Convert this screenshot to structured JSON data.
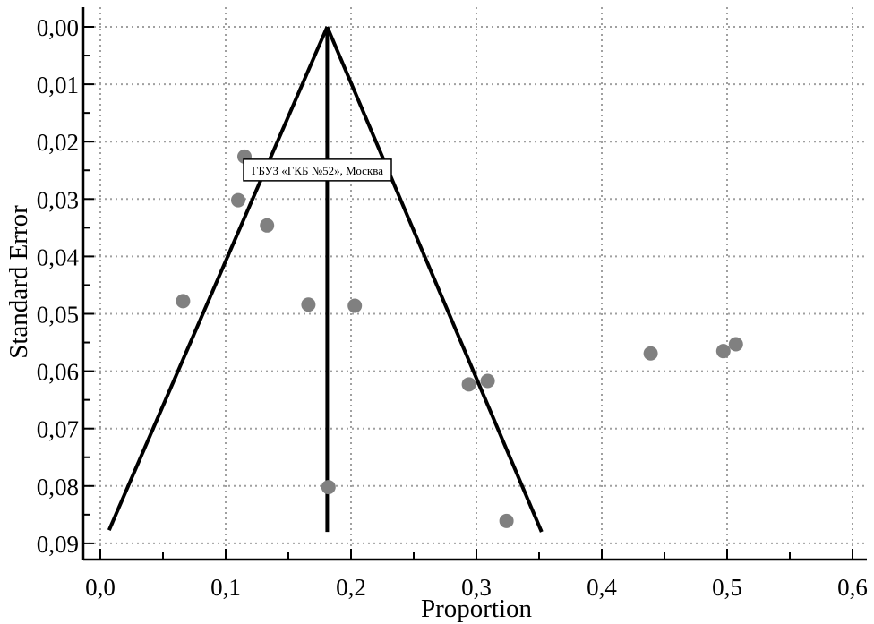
{
  "chart_data": {
    "type": "scatter",
    "subtype": "funnel-plot",
    "title": "",
    "xlabel": "Proportion",
    "ylabel": "Standard Error",
    "xlim": [
      0.0,
      0.6
    ],
    "ylim": [
      0.0,
      0.09
    ],
    "y_inverted": true,
    "grid": true,
    "x_ticks": [
      "0,0",
      "0,1",
      "0,2",
      "0,3",
      "0,4",
      "0,5",
      "0,6"
    ],
    "x_tick_values": [
      0.0,
      0.1,
      0.2,
      0.3,
      0.4,
      0.5,
      0.6
    ],
    "y_ticks": [
      "0,00",
      "0,01",
      "0,02",
      "0,03",
      "0,04",
      "0,05",
      "0,06",
      "0,07",
      "0,08",
      "0,09"
    ],
    "y_tick_values": [
      0.0,
      0.01,
      0.02,
      0.03,
      0.04,
      0.05,
      0.06,
      0.07,
      0.08,
      0.09
    ],
    "points": [
      {
        "x": 0.115,
        "y": 0.0226
      },
      {
        "x": 0.11,
        "y": 0.0302
      },
      {
        "x": 0.133,
        "y": 0.0346
      },
      {
        "x": 0.066,
        "y": 0.0478
      },
      {
        "x": 0.166,
        "y": 0.0484
      },
      {
        "x": 0.203,
        "y": 0.0486
      },
      {
        "x": 0.294,
        "y": 0.0623
      },
      {
        "x": 0.309,
        "y": 0.0617
      },
      {
        "x": 0.182,
        "y": 0.0802
      },
      {
        "x": 0.324,
        "y": 0.0861
      },
      {
        "x": 0.439,
        "y": 0.0569
      },
      {
        "x": 0.497,
        "y": 0.0565
      },
      {
        "x": 0.507,
        "y": 0.0553
      }
    ],
    "pooled_estimate": {
      "x": 0.181,
      "y_range": [
        0.0,
        0.088
      ]
    },
    "funnel": {
      "apex": {
        "x": 0.181,
        "y": 0.0
      },
      "left_bottom": {
        "x": 0.007,
        "y": 0.0877
      },
      "right_bottom": {
        "x": 0.352,
        "y": 0.088
      }
    },
    "annotation": {
      "text": "ГБУЗ «ГКБ №52», Москва",
      "point_index": 0
    },
    "colors": {
      "point": "#808080",
      "line": "#000000",
      "grid": "#a0a0a0"
    }
  }
}
